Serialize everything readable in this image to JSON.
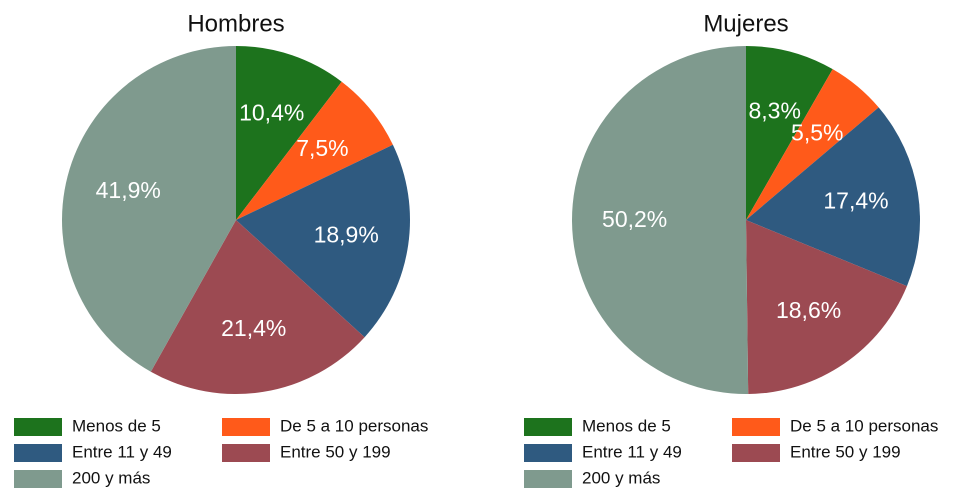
{
  "chart_data": [
    {
      "type": "pie",
      "title": "Hombres",
      "categories": [
        "Menos de 5",
        "De 5 a 10 personas",
        "Entre 11 y 49",
        "Entre 50 y 199",
        "200 y más"
      ],
      "values": [
        10.4,
        7.5,
        18.9,
        21.4,
        41.9
      ],
      "value_labels": [
        "10,4%",
        "7,5%",
        "18,9%",
        "21,4%",
        "41,9%"
      ],
      "colors": [
        "#1d731d",
        "#ff5a1a",
        "#2f5a80",
        "#9c4a52",
        "#7f9a8e"
      ]
    },
    {
      "type": "pie",
      "title": "Mujeres",
      "categories": [
        "Menos de 5",
        "De 5 a 10 personas",
        "Entre 11 y 49",
        "Entre 50 y 199",
        "200 y más"
      ],
      "values": [
        8.3,
        5.5,
        17.4,
        18.6,
        50.2
      ],
      "value_labels": [
        "8,3%",
        "5,5%",
        "17,4%",
        "18,6%",
        "50,2%"
      ],
      "colors": [
        "#1d731d",
        "#ff5a1a",
        "#2f5a80",
        "#9c4a52",
        "#7f9a8e"
      ]
    }
  ]
}
